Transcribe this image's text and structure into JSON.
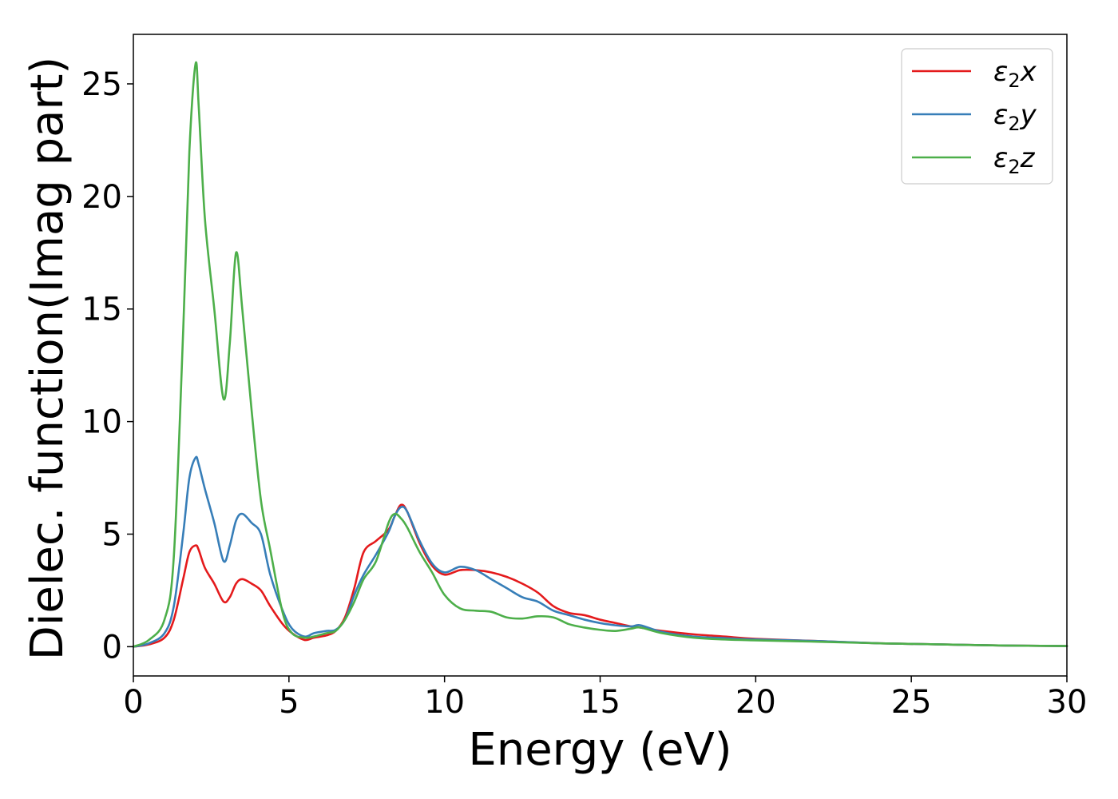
{
  "chart_data": {
    "type": "line",
    "title": "",
    "xlabel": "Energy (eV)",
    "ylabel": "Dielec. function(Imag part)",
    "xlim": [
      0,
      30
    ],
    "ylim": [
      -1.3,
      27.2
    ],
    "xticks": [
      0,
      5,
      10,
      15,
      20,
      25,
      30
    ],
    "yticks": [
      0,
      5,
      10,
      15,
      20,
      25
    ],
    "grid": false,
    "legend_position": "top-right",
    "x": [
      0,
      0.5,
      1.0,
      1.3,
      1.6,
      1.8,
      2.0,
      2.1,
      2.3,
      2.6,
      2.9,
      3.1,
      3.3,
      3.5,
      3.8,
      4.1,
      4.4,
      4.8,
      5.1,
      5.5,
      5.8,
      6.2,
      6.5,
      6.8,
      7.1,
      7.4,
      7.8,
      8.2,
      8.4,
      8.6,
      8.8,
      9.2,
      9.6,
      10.0,
      10.5,
      11.0,
      11.5,
      12.0,
      12.5,
      13.0,
      13.5,
      14.0,
      14.5,
      15.0,
      15.5,
      16.0,
      16.3,
      17.0,
      18.0,
      19.0,
      20.0,
      22.0,
      24.0,
      26.0,
      28.0,
      30.0
    ],
    "series": [
      {
        "name": "ε₂x",
        "subscript_label": {
          "base": "ε",
          "sub": "2",
          "suffix": "x"
        },
        "color": "#e41a1c",
        "values": [
          0,
          0.1,
          0.4,
          1.2,
          3.0,
          4.2,
          4.5,
          4.3,
          3.5,
          2.8,
          2.0,
          2.2,
          2.8,
          3.0,
          2.8,
          2.5,
          1.8,
          1.0,
          0.6,
          0.3,
          0.4,
          0.5,
          0.7,
          1.3,
          2.6,
          4.2,
          4.7,
          5.2,
          5.8,
          6.3,
          6.0,
          4.6,
          3.6,
          3.2,
          3.4,
          3.4,
          3.3,
          3.1,
          2.8,
          2.4,
          1.8,
          1.5,
          1.4,
          1.2,
          1.05,
          0.9,
          0.85,
          0.7,
          0.55,
          0.45,
          0.35,
          0.25,
          0.15,
          0.1,
          0.05,
          0.03
        ]
      },
      {
        "name": "ε₂y",
        "subscript_label": {
          "base": "ε",
          "sub": "2",
          "suffix": "y"
        },
        "color": "#377eb8",
        "values": [
          0,
          0.15,
          0.6,
          1.8,
          5.0,
          7.5,
          8.4,
          8.1,
          7.0,
          5.5,
          3.8,
          4.5,
          5.6,
          5.9,
          5.5,
          5.0,
          3.2,
          1.6,
          0.8,
          0.45,
          0.6,
          0.7,
          0.75,
          1.2,
          2.3,
          3.2,
          4.1,
          5.1,
          5.8,
          6.2,
          6.0,
          4.7,
          3.7,
          3.3,
          3.55,
          3.4,
          3.0,
          2.6,
          2.2,
          2.0,
          1.6,
          1.4,
          1.2,
          1.05,
          0.95,
          0.9,
          0.95,
          0.65,
          0.45,
          0.38,
          0.32,
          0.25,
          0.15,
          0.1,
          0.05,
          0.03
        ]
      },
      {
        "name": "ε₂z",
        "subscript_label": {
          "base": "ε",
          "sub": "2",
          "suffix": "z"
        },
        "color": "#4daf4a",
        "values": [
          0,
          0.3,
          1.2,
          4.0,
          14.0,
          22.0,
          25.9,
          24.0,
          19.0,
          15.0,
          11.0,
          13.5,
          17.5,
          15.0,
          10.5,
          6.5,
          4.3,
          1.5,
          0.6,
          0.4,
          0.45,
          0.6,
          0.7,
          1.2,
          2.0,
          3.0,
          3.8,
          5.5,
          5.9,
          5.7,
          5.3,
          4.2,
          3.3,
          2.3,
          1.7,
          1.6,
          1.55,
          1.3,
          1.25,
          1.35,
          1.3,
          1.0,
          0.85,
          0.75,
          0.7,
          0.8,
          0.85,
          0.6,
          0.4,
          0.32,
          0.28,
          0.22,
          0.15,
          0.1,
          0.05,
          0.03
        ]
      }
    ]
  }
}
